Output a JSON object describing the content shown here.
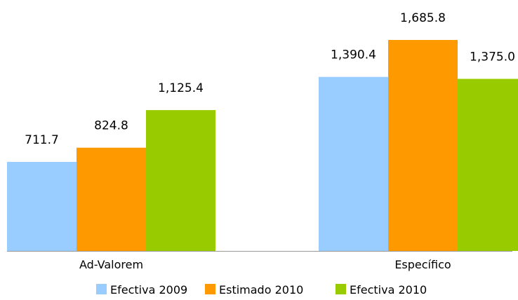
{
  "chart_data": {
    "type": "bar",
    "categories": [
      "Ad-Valorem",
      "Específico"
    ],
    "series": [
      {
        "name": "Efectiva 2009",
        "color": "#99ccff",
        "values": [
          711.7,
          1390.4
        ],
        "labels": [
          "711.7",
          "1,390.4"
        ]
      },
      {
        "name": "Estimado 2010",
        "color": "#ff9900",
        "values": [
          824.8,
          1685.8
        ],
        "labels": [
          "824.8",
          "1,685.8"
        ]
      },
      {
        "name": "Efectiva 2010",
        "color": "#99cc00",
        "values": [
          1125.4,
          1375.0
        ],
        "labels": [
          "1,125.4",
          "1,375.0"
        ]
      }
    ],
    "ylim": [
      0,
      1685.8
    ],
    "grid": false,
    "legend_position": "bottom",
    "title": "",
    "xlabel": "",
    "ylabel": ""
  }
}
